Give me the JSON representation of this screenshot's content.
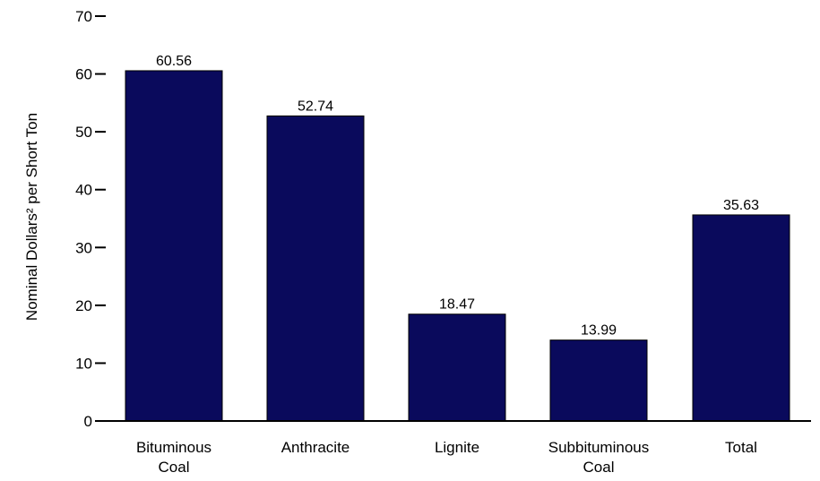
{
  "chart_data": {
    "type": "bar",
    "categories": [
      [
        "Bituminous",
        "Coal"
      ],
      [
        "Anthracite"
      ],
      [
        "Lignite"
      ],
      [
        "Subbituminous",
        "Coal"
      ],
      [
        "Total"
      ]
    ],
    "values": [
      60.56,
      52.74,
      18.47,
      13.99,
      35.63
    ],
    "value_labels": [
      "60.56",
      "52.74",
      "18.47",
      "13.99",
      "35.63"
    ],
    "ylabel": "Nominal Dollars² per Short Ton",
    "ylim": [
      0,
      70
    ],
    "yticks": [
      0,
      10,
      20,
      30,
      40,
      50,
      60,
      70
    ],
    "bar_color": "#0a0a5c",
    "grid": false
  }
}
